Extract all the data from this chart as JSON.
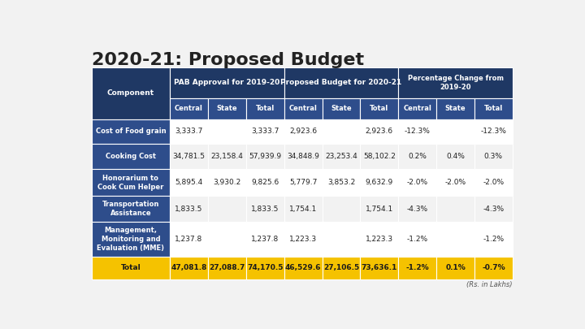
{
  "title": "2020-21: Proposed Budget",
  "title_fontsize": 16,
  "title_color": "#222222",
  "background_color": "#f2f2f2",
  "header1_color": "#1F3864",
  "header2_color": "#2E4D8B",
  "total_row_color": "#F5C200",
  "header_text_color": "#FFFFFF",
  "total_text_color": "#1a1a1a",
  "body_text_color": "#222222",
  "comp_col_text_color": "#FFFFFF",
  "sub_headers": [
    "Central",
    "State",
    "Total",
    "Central",
    "State",
    "Total",
    "Central",
    "State",
    "Total"
  ],
  "rows": [
    [
      "Cost of Food grain",
      "3,333.7",
      "",
      "3,333.7",
      "2,923.6",
      "",
      "2,923.6",
      "-12.3%",
      "",
      "-12.3%"
    ],
    [
      "Cooking Cost",
      "34,781.5",
      "23,158.4",
      "57,939.9",
      "34,848.9",
      "23,253.4",
      "58,102.2",
      "0.2%",
      "0.4%",
      "0.3%"
    ],
    [
      "Honorarium to\nCook Cum Helper",
      "5,895.4",
      "3,930.2",
      "9,825.6",
      "5,779.7",
      "3,853.2",
      "9,632.9",
      "-2.0%",
      "-2.0%",
      "-2.0%"
    ],
    [
      "Transportation\nAssistance",
      "1,833.5",
      "",
      "1,833.5",
      "1,754.1",
      "",
      "1,754.1",
      "-4.3%",
      "",
      "-4.3%"
    ],
    [
      "Management,\nMonitoring and\nEvaluation (MME)",
      "1,237.8",
      "",
      "1,237.8",
      "1,223.3",
      "",
      "1,223.3",
      "-1.2%",
      "",
      "-1.2%"
    ]
  ],
  "total_row": [
    "Total",
    "47,081.8",
    "27,088.7",
    "74,170.5",
    "46,529.6",
    "27,106.5",
    "73,636.1",
    "-1.2%",
    "0.1%",
    "-0.7%"
  ],
  "footnote": "(Rs. in Lakhs)",
  "col_widths_rel": [
    1.75,
    0.85,
    0.85,
    0.85,
    0.85,
    0.85,
    0.85,
    0.85,
    0.85,
    0.85
  ],
  "row_heights_rel": [
    1.3,
    0.9,
    1.05,
    1.1,
    1.15,
    1.1,
    1.5,
    0.95
  ]
}
